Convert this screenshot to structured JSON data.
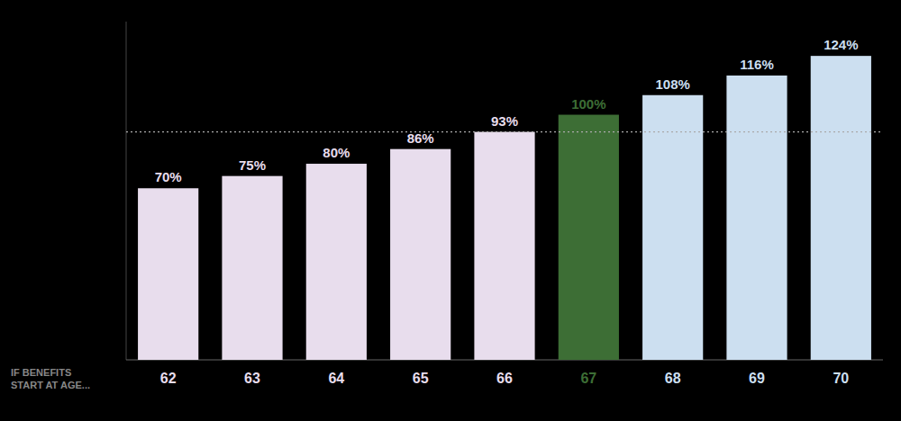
{
  "chart_data": {
    "type": "bar",
    "categories": [
      62,
      63,
      64,
      65,
      66,
      67,
      68,
      69,
      70
    ],
    "values": [
      70,
      75,
      80,
      86,
      93,
      100,
      108,
      116,
      124
    ],
    "value_labels": [
      "70%",
      "75%",
      "80%",
      "86%",
      "93%",
      "100%",
      "108%",
      "116%",
      "124%"
    ],
    "colors": [
      "#e8dded",
      "#e8dded",
      "#e8dded",
      "#e8dded",
      "#e8dded",
      "#3d6e35",
      "#ccdff0",
      "#ccdff0",
      "#ccdff0"
    ],
    "xlabel": "IF BENEFITS\nSTART AT AGE...",
    "reference_line": 93,
    "ylim": [
      0,
      138
    ],
    "data_labels": true,
    "tick_labels": "x",
    "grid": false
  }
}
